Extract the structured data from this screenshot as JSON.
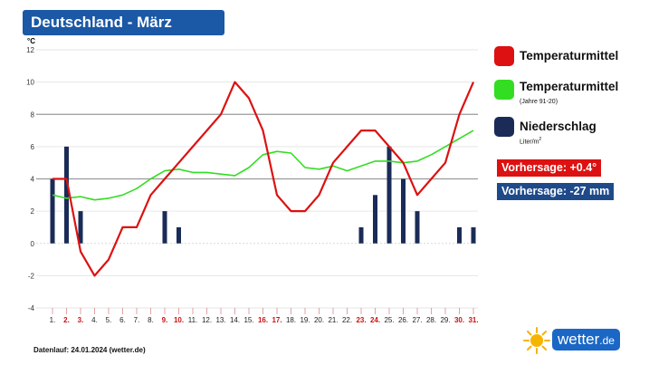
{
  "title": "Deutschland - März",
  "footer": "Datenlauf: 24.01.2024 (wetter.de)",
  "logo": {
    "name": "wetter",
    "suffix": ".de",
    "icon": "sun-icon"
  },
  "colors": {
    "title_bg": "#1b58a5",
    "temperature": "#dd1111",
    "temperature_ref": "#33dd22",
    "precipitation": "#1a2b57",
    "red_date": "#cc1111"
  },
  "legend": [
    {
      "label": "Temperaturmittel",
      "sub": "",
      "color": "#dd1111"
    },
    {
      "label": "Temperaturmittel",
      "sub": "(Jahre 91-20)",
      "color": "#33dd22"
    },
    {
      "label": "Niederschlag",
      "sub": "Liter/m",
      "sub_sup": "2",
      "color": "#1a2b57"
    }
  ],
  "badges": [
    {
      "text": "Vorhersage: +0.4°",
      "color": "#dd1111"
    },
    {
      "text": "Vorhersage: -27 mm",
      "color": "#1f4a8a"
    }
  ],
  "chart_data": {
    "type": "line",
    "y_unit": "°C",
    "ylim": [
      -4,
      12
    ],
    "yticks": [
      -4,
      -2,
      0,
      2,
      4,
      6,
      8,
      10,
      12
    ],
    "categories": [
      "1.",
      "2.",
      "3.",
      "4.",
      "5.",
      "6.",
      "7.",
      "8.",
      "9.",
      "10.",
      "11.",
      "12.",
      "13.",
      "14.",
      "15.",
      "16.",
      "17.",
      "18.",
      "19.",
      "20.",
      "21.",
      "22.",
      "23.",
      "24.",
      "25.",
      "26.",
      "27.",
      "28.",
      "29.",
      "30.",
      "31."
    ],
    "red_labels": [
      2,
      3,
      9,
      10,
      16,
      17,
      23,
      24,
      30,
      31
    ],
    "series": [
      {
        "name": "Temperaturmittel",
        "type": "line",
        "values": [
          4,
          4,
          -0.5,
          -2,
          -1,
          1,
          1,
          3,
          4,
          5,
          6,
          7,
          8,
          10,
          9,
          7,
          3,
          2,
          2,
          3,
          5,
          6,
          7,
          7,
          6,
          5,
          3,
          4,
          5,
          8,
          10
        ]
      },
      {
        "name": "Temperaturmittel (Jahre 91-20)",
        "type": "line",
        "values": [
          3,
          2.8,
          2.9,
          2.7,
          2.8,
          3,
          3.4,
          4,
          4.5,
          4.6,
          4.4,
          4.4,
          4.3,
          4.2,
          4.7,
          5.5,
          5.7,
          5.6,
          4.7,
          4.6,
          4.8,
          4.5,
          4.8,
          5.1,
          5.1,
          5,
          5.1,
          5.5,
          6,
          6.5,
          7
        ]
      },
      {
        "name": "Niederschlag",
        "type": "bar",
        "values": [
          4,
          6,
          2,
          0,
          0,
          0,
          0,
          0,
          2,
          1,
          0,
          0,
          0,
          0,
          0,
          0,
          0,
          0,
          0,
          0,
          0,
          0,
          1,
          3,
          6,
          4,
          2,
          0,
          0,
          1,
          1
        ]
      }
    ]
  }
}
